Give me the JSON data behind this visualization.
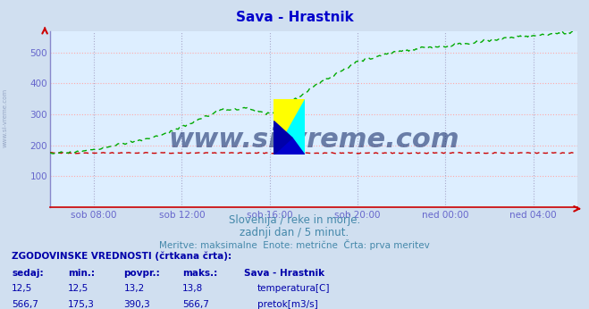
{
  "title": "Sava - Hrastnik",
  "title_color": "#0000cc",
  "bg_color": "#d0dff0",
  "plot_bg_color": "#ddeeff",
  "grid_color_h": "#ffaaaa",
  "grid_color_v": "#aaaadd",
  "axis_color": "#6666cc",
  "tick_color": "#6666cc",
  "xlabel_ticks": [
    "sob 08:00",
    "sob 12:00",
    "sob 16:00",
    "sob 20:00",
    "ned 00:00",
    "ned 04:00"
  ],
  "yticks": [
    100,
    200,
    300,
    400,
    500
  ],
  "ylim": [
    0,
    570
  ],
  "xlim": [
    0,
    288
  ],
  "watermark": "www.si-vreme.com",
  "watermark_color": "#0a2060",
  "subtitle1": "Slovenija / reke in morje.",
  "subtitle2": "zadnji dan / 5 minut.",
  "subtitle3": "Meritve: maksimalne  Enote: metrične  Črta: prva meritev",
  "subtitle_color": "#4488aa",
  "table_header": "ZGODOVINSKE VREDNOSTI (črtkana črta):",
  "table_cols": [
    "sedaj:",
    "min.:",
    "povpr.:",
    "maks.:",
    "Sava - Hrastnik"
  ],
  "temp_row": [
    "12,5",
    "12,5",
    "13,2",
    "13,8",
    "temperatura[C]"
  ],
  "flow_row": [
    "566,7",
    "175,3",
    "390,3",
    "566,7",
    "pretok[m3/s]"
  ],
  "temp_color": "#cc0000",
  "flow_color": "#00aa00",
  "table_color": "#0000aa",
  "table_val_color": "#0000aa"
}
